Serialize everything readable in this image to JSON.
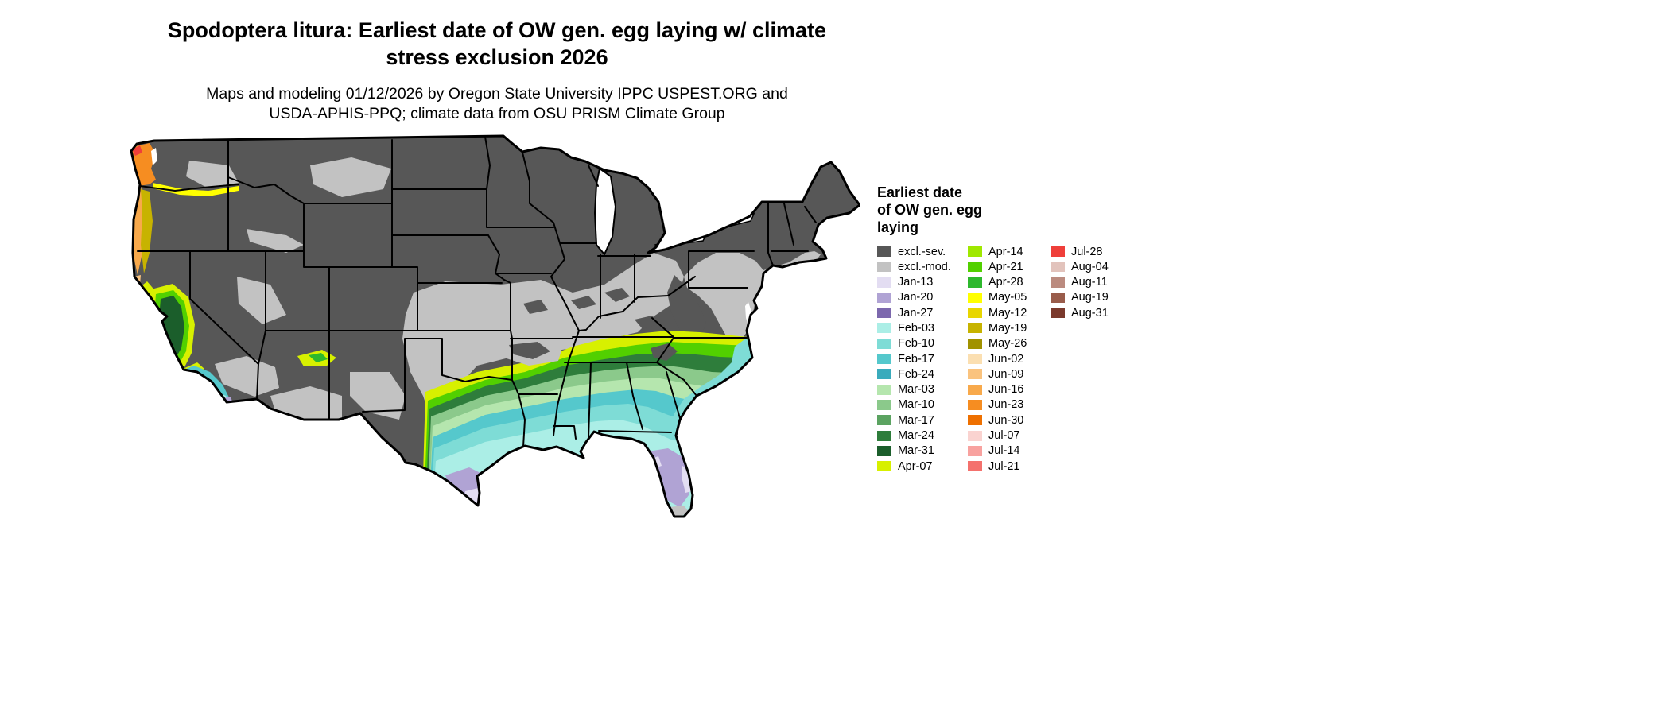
{
  "title": {
    "line1": "Spodoptera litura: Earliest date of OW gen. egg laying w/ climate",
    "line2": "stress exclusion 2026"
  },
  "subtitle": {
    "line1": "Maps and modeling 01/12/2026 by Oregon State University IPPC USPEST.ORG and",
    "line2": "USDA-APHIS-PPQ; climate data from OSU PRISM Climate Group"
  },
  "legend": {
    "title_lines": [
      "Earliest date",
      "of OW gen. egg",
      "laying"
    ],
    "columns": [
      [
        {
          "label": "excl.-sev.",
          "key": "excl_sev"
        },
        {
          "label": "excl.-mod.",
          "key": "excl_mod"
        },
        {
          "label": "Jan-13",
          "key": "jan13"
        },
        {
          "label": "Jan-20",
          "key": "jan20"
        },
        {
          "label": "Jan-27",
          "key": "jan27"
        },
        {
          "label": "Feb-03",
          "key": "feb03"
        },
        {
          "label": "Feb-10",
          "key": "feb10"
        },
        {
          "label": "Feb-17",
          "key": "feb17"
        },
        {
          "label": "Feb-24",
          "key": "feb24"
        },
        {
          "label": "Mar-03",
          "key": "mar03"
        },
        {
          "label": "Mar-10",
          "key": "mar10"
        },
        {
          "label": "Mar-17",
          "key": "mar17"
        },
        {
          "label": "Mar-24",
          "key": "mar24"
        },
        {
          "label": "Mar-31",
          "key": "mar31"
        },
        {
          "label": "Apr-07",
          "key": "apr07"
        }
      ],
      [
        {
          "label": "Apr-14",
          "key": "apr14"
        },
        {
          "label": "Apr-21",
          "key": "apr21"
        },
        {
          "label": "Apr-28",
          "key": "apr28"
        },
        {
          "label": "May-05",
          "key": "may05"
        },
        {
          "label": "May-12",
          "key": "may12"
        },
        {
          "label": "May-19",
          "key": "may19"
        },
        {
          "label": "May-26",
          "key": "may26"
        },
        {
          "label": "Jun-02",
          "key": "jun02"
        },
        {
          "label": "Jun-09",
          "key": "jun09"
        },
        {
          "label": "Jun-16",
          "key": "jun16"
        },
        {
          "label": "Jun-23",
          "key": "jun23"
        },
        {
          "label": "Jun-30",
          "key": "jun30"
        },
        {
          "label": "Jul-07",
          "key": "jul07"
        },
        {
          "label": "Jul-14",
          "key": "jul14"
        },
        {
          "label": "Jul-21",
          "key": "jul21"
        }
      ],
      [
        {
          "label": "Jul-28",
          "key": "jul28"
        },
        {
          "label": "Aug-04",
          "key": "aug04"
        },
        {
          "label": "Aug-11",
          "key": "aug11"
        },
        {
          "label": "Aug-19",
          "key": "aug19"
        },
        {
          "label": "Aug-31",
          "key": "aug31"
        }
      ]
    ]
  },
  "map_colors": {
    "excl_sev": "#575757",
    "excl_mod": "#c2c2c2",
    "jan13": "#e3ddf2",
    "jan20": "#b0a3d4",
    "jan27": "#7c68ad",
    "feb03": "#abeee6",
    "feb10": "#7edcd6",
    "feb17": "#55c8cc",
    "feb24": "#3aabbc",
    "mar03": "#b5e6ae",
    "mar10": "#8bc98b",
    "mar17": "#5ba361",
    "mar24": "#2e7d3b",
    "mar31": "#1b5e2b",
    "apr07": "#d7f000",
    "apr14": "#9fe800",
    "apr21": "#52d000",
    "apr28": "#2db82d",
    "may05": "#ffff00",
    "may12": "#e8d600",
    "may19": "#c7b300",
    "may26": "#a19200",
    "jun02": "#fbdfb1",
    "jun09": "#fac37e",
    "jun16": "#f8a94b",
    "jun23": "#f68d21",
    "jun30": "#ee7000",
    "jul07": "#fad3d0",
    "jul14": "#f8a29f",
    "jul21": "#f4716d",
    "jul28": "#ef3f3a",
    "aug04": "#e2c3bc",
    "aug11": "#bb8b7f",
    "aug19": "#995c4b",
    "aug31": "#7a392c",
    "lake": "#ffffff"
  }
}
